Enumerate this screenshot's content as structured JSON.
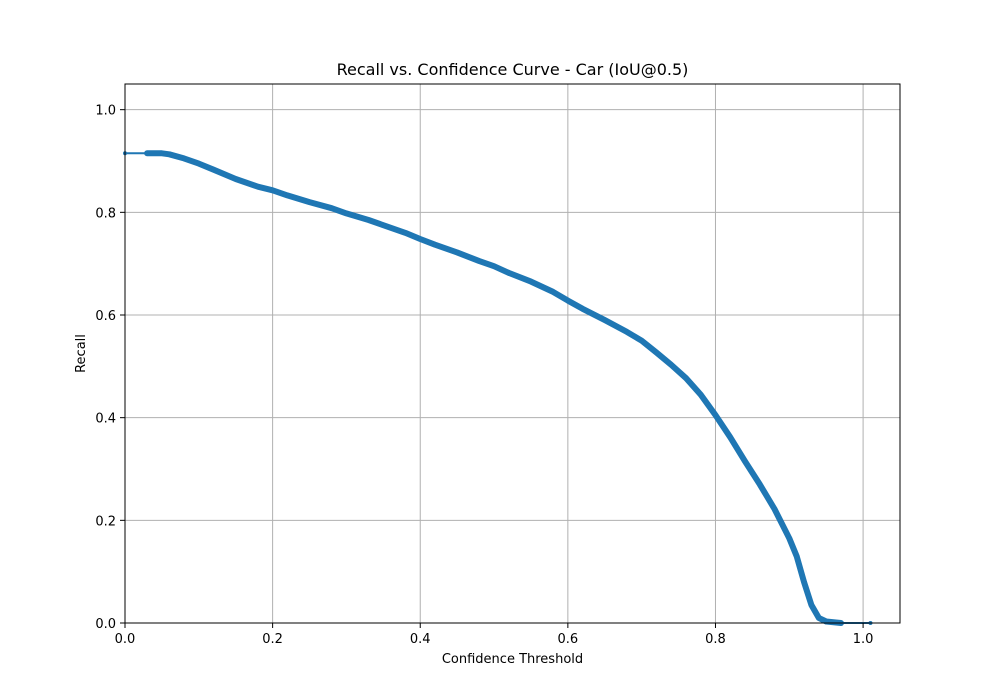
{
  "chart_data": {
    "type": "line",
    "title": "Recall vs. Confidence Curve - Car (IoU@0.5)",
    "xlabel": "Confidence Threshold",
    "ylabel": "Recall",
    "xlim": [
      0.0,
      1.05
    ],
    "ylim": [
      0.0,
      1.05
    ],
    "xticks": [
      0.0,
      0.2,
      0.4,
      0.6,
      0.8,
      1.0
    ],
    "yticks": [
      0.0,
      0.2,
      0.4,
      0.6,
      0.8,
      1.0
    ],
    "xtick_labels": [
      "0.0",
      "0.2",
      "0.4",
      "0.6",
      "0.8",
      "1.0"
    ],
    "ytick_labels": [
      "0.0",
      "0.2",
      "0.4",
      "0.6",
      "0.8",
      "1.0"
    ],
    "grid": true,
    "legend": "none",
    "series": [
      {
        "color": "#1f77b4",
        "x": [
          0.0,
          0.03,
          0.05,
          0.06,
          0.08,
          0.1,
          0.12,
          0.15,
          0.18,
          0.2,
          0.22,
          0.25,
          0.28,
          0.3,
          0.33,
          0.35,
          0.38,
          0.4,
          0.42,
          0.45,
          0.48,
          0.5,
          0.52,
          0.55,
          0.58,
          0.6,
          0.62,
          0.65,
          0.68,
          0.7,
          0.72,
          0.74,
          0.76,
          0.78,
          0.8,
          0.82,
          0.84,
          0.86,
          0.88,
          0.9,
          0.91,
          0.92,
          0.93,
          0.94,
          0.95,
          0.97,
          1.01
        ],
        "y": [
          0.915,
          0.915,
          0.915,
          0.913,
          0.905,
          0.895,
          0.883,
          0.865,
          0.85,
          0.843,
          0.833,
          0.82,
          0.808,
          0.798,
          0.785,
          0.775,
          0.76,
          0.748,
          0.737,
          0.722,
          0.705,
          0.695,
          0.682,
          0.665,
          0.645,
          0.628,
          0.612,
          0.59,
          0.567,
          0.55,
          0.527,
          0.503,
          0.477,
          0.445,
          0.405,
          0.362,
          0.315,
          0.27,
          0.222,
          0.165,
          0.13,
          0.08,
          0.035,
          0.01,
          0.003,
          0.0,
          0.0
        ]
      }
    ]
  }
}
